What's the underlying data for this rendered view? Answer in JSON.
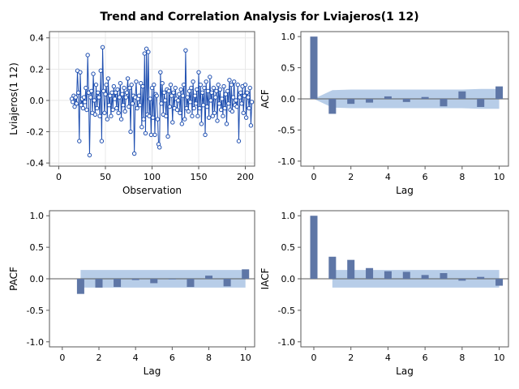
{
  "title": "Trend and Correlation Analysis for Lviajeros(1 12)",
  "colors": {
    "frame": "#5a5a5a",
    "panel_bg": "#ffffff",
    "grid": "#e8e8e8",
    "series_line": "#1f4fb0",
    "series_marker": "#1f4fb0",
    "bar_fill": "#5e76a6",
    "confidence_band": "#b7cde8",
    "zero_line": "#5a5a5a"
  },
  "chart_data": [
    {
      "type": "line",
      "name": "series",
      "xlabel": "Observation",
      "ylabel": "Lviajeros(1 12)",
      "xlim": [
        -10,
        210
      ],
      "ylim": [
        -0.42,
        0.44
      ],
      "xticks": [
        0,
        50,
        100,
        150,
        200
      ],
      "yticks": [
        -0.4,
        -0.2,
        0.0,
        0.2,
        0.4
      ],
      "ytick_labels": [
        "-0.4",
        "-0.2",
        "0.0",
        "0.2",
        "0.4"
      ],
      "grid": true,
      "x_start": 14,
      "y": [
        0.01,
        -0.01,
        0.03,
        -0.04,
        0.02,
        -0.02,
        0.19,
        0.05,
        -0.26,
        0.18,
        -0.03,
        0.01,
        -0.05,
        0.02,
        -0.01,
        0.08,
        -0.06,
        0.29,
        0.05,
        -0.35,
        0.02,
        0.06,
        -0.08,
        0.17,
        0.0,
        -0.09,
        0.1,
        -0.05,
        0.05,
        0.02,
        -0.1,
        0.19,
        -0.26,
        0.34,
        0.06,
        -0.08,
        0.04,
        0.1,
        -0.12,
        0.14,
        -0.03,
        0.03,
        -0.1,
        0.05,
        -0.06,
        0.09,
        0.01,
        0.05,
        -0.05,
        0.07,
        -0.08,
        0.02,
        0.11,
        -0.12,
        0.04,
        -0.03,
        0.08,
        -0.07,
        0.02,
        0.05,
        0.14,
        -0.04,
        0.08,
        -0.2,
        0.1,
        -0.02,
        0.03,
        -0.34,
        0.02,
        0.12,
        -0.05,
        0.01,
        0.03,
        -0.03,
        0.11,
        -0.17,
        0.09,
        -0.12,
        0.3,
        -0.21,
        0.33,
        -0.09,
        0.31,
        -0.1,
        0.01,
        -0.22,
        0.08,
        -0.11,
        0.1,
        -0.22,
        0.04,
        0.03,
        -0.12,
        -0.28,
        -0.3,
        0.18,
        -0.02,
        0.11,
        -0.09,
        0.05,
        0.0,
        -0.1,
        0.07,
        -0.23,
        0.06,
        -0.04,
        0.1,
        0.03,
        -0.14,
        0.05,
        -0.05,
        0.08,
        0.01,
        -0.06,
        0.0,
        0.04,
        -0.08,
        0.07,
        -0.15,
        0.03,
        0.1,
        -0.12,
        0.32,
        -0.05,
        0.02,
        -0.07,
        0.06,
        -0.01,
        0.08,
        -0.1,
        0.12,
        -0.05,
        0.03,
        -0.02,
        0.07,
        -0.1,
        0.18,
        -0.05,
        0.1,
        -0.15,
        0.05,
        -0.03,
        0.08,
        -0.22,
        0.12,
        -0.04,
        0.06,
        -0.11,
        0.15,
        0.0,
        0.05,
        -0.1,
        0.08,
        -0.08,
        0.02,
        0.06,
        -0.13,
        0.1,
        -0.02,
        0.07,
        -0.06,
        0.01,
        -0.1,
        0.09,
        -0.05,
        0.04,
        -0.15,
        0.06,
        -0.02,
        0.13,
        -0.06,
        0.1,
        -0.07,
        0.02,
        0.12,
        -0.03,
        0.0,
        -0.04,
        0.1,
        -0.26,
        0.02,
        0.05,
        -0.02,
        0.09,
        -0.08,
        0.03,
        0.1,
        -0.11,
        0.05,
        0.02,
        -0.05,
        0.08,
        -0.16,
        -0.01
      ]
    },
    {
      "type": "bar",
      "name": "acf",
      "xlabel": "Lag",
      "ylabel": "ACF",
      "xlim": [
        -0.7,
        10.5
      ],
      "ylim": [
        -1.08,
        1.08
      ],
      "xticks": [
        0,
        2,
        4,
        6,
        8,
        10
      ],
      "yticks": [
        -1.0,
        -0.5,
        0.0,
        0.5,
        1.0
      ],
      "ytick_labels": [
        "-1.0",
        "-0.5",
        "0.0",
        "0.5",
        "1.0"
      ],
      "lags": [
        0,
        1,
        2,
        3,
        4,
        5,
        6,
        7,
        8,
        9,
        10
      ],
      "values": [
        1.0,
        -0.24,
        -0.08,
        -0.06,
        0.04,
        -0.05,
        0.03,
        -0.12,
        0.12,
        -0.13,
        0.2
      ],
      "band_lags": [
        0,
        1,
        2,
        3,
        4,
        5,
        6,
        7,
        8,
        9,
        10
      ],
      "band_upper": [
        0.0,
        0.14,
        0.15,
        0.15,
        0.15,
        0.15,
        0.15,
        0.15,
        0.15,
        0.16,
        0.16
      ],
      "band_lower": [
        0.0,
        -0.14,
        -0.15,
        -0.15,
        -0.15,
        -0.15,
        -0.15,
        -0.15,
        -0.15,
        -0.16,
        -0.16
      ]
    },
    {
      "type": "bar",
      "name": "pacf",
      "xlabel": "Lag",
      "ylabel": "PACF",
      "xlim": [
        -0.7,
        10.5
      ],
      "ylim": [
        -1.08,
        1.08
      ],
      "xticks": [
        0,
        2,
        4,
        6,
        8,
        10
      ],
      "yticks": [
        -1.0,
        -0.5,
        0.0,
        0.5,
        1.0
      ],
      "ytick_labels": [
        "-1.0",
        "-0.5",
        "0.0",
        "0.5",
        "1.0"
      ],
      "lags": [
        1,
        2,
        3,
        4,
        5,
        6,
        7,
        8,
        9,
        10
      ],
      "values": [
        -0.24,
        -0.14,
        -0.13,
        -0.02,
        -0.07,
        0.0,
        -0.13,
        0.05,
        -0.12,
        0.15
      ],
      "band_lags": [
        1,
        2,
        3,
        4,
        5,
        6,
        7,
        8,
        9,
        10
      ],
      "band_upper": [
        0.14,
        0.14,
        0.14,
        0.14,
        0.14,
        0.14,
        0.14,
        0.14,
        0.14,
        0.14
      ],
      "band_lower": [
        -0.14,
        -0.14,
        -0.14,
        -0.14,
        -0.14,
        -0.14,
        -0.14,
        -0.14,
        -0.14,
        -0.14
      ]
    },
    {
      "type": "bar",
      "name": "iacf",
      "xlabel": "Lag",
      "ylabel": "IACF",
      "xlim": [
        -0.7,
        10.5
      ],
      "ylim": [
        -1.08,
        1.08
      ],
      "xticks": [
        0,
        2,
        4,
        6,
        8,
        10
      ],
      "yticks": [
        -1.0,
        -0.5,
        0.0,
        0.5,
        1.0
      ],
      "ytick_labels": [
        "-1.0",
        "-0.5",
        "0.0",
        "0.5",
        "1.0"
      ],
      "lags": [
        0,
        1,
        2,
        3,
        4,
        5,
        6,
        7,
        8,
        9,
        10
      ],
      "values": [
        1.0,
        0.35,
        0.3,
        0.17,
        0.12,
        0.11,
        0.06,
        0.09,
        -0.03,
        0.03,
        -0.11
      ],
      "band_lags": [
        1,
        2,
        3,
        4,
        5,
        6,
        7,
        8,
        9,
        10
      ],
      "band_upper": [
        0.14,
        0.14,
        0.14,
        0.14,
        0.14,
        0.14,
        0.14,
        0.14,
        0.14,
        0.14
      ],
      "band_lower": [
        -0.14,
        -0.14,
        -0.14,
        -0.14,
        -0.14,
        -0.14,
        -0.14,
        -0.14,
        -0.14,
        -0.14
      ]
    }
  ]
}
